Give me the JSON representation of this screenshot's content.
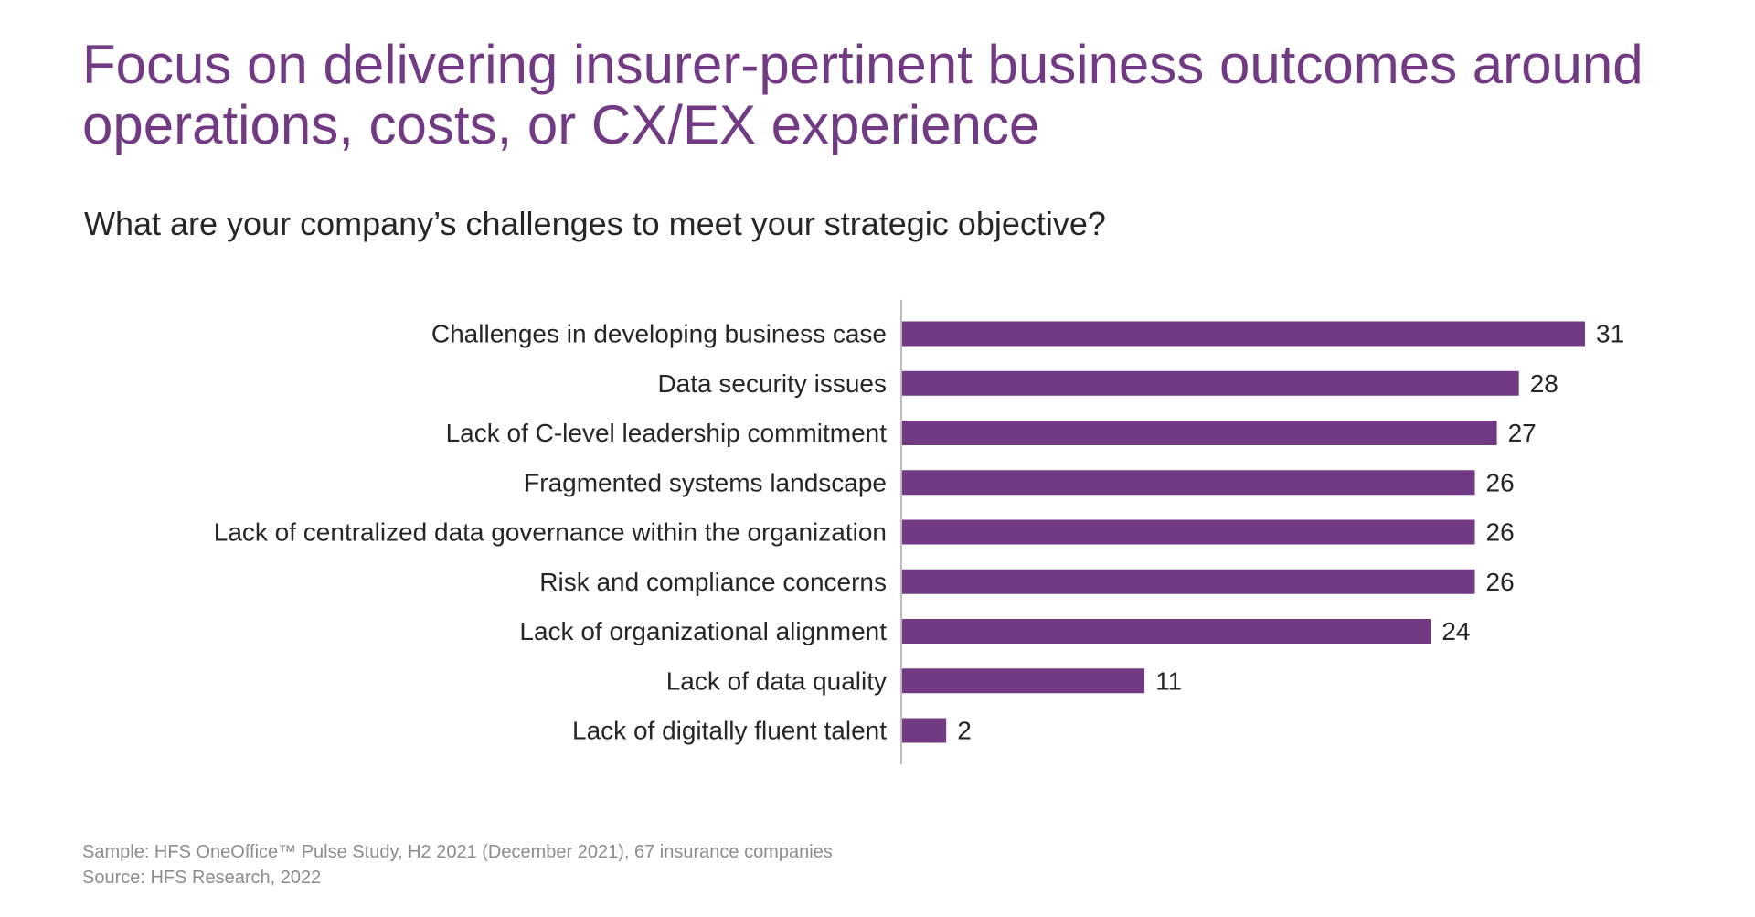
{
  "header": {
    "title": "Focus on delivering insurer-pertinent business outcomes around operations, costs, or CX/EX experience",
    "subtitle": "What are your company’s challenges to meet your strategic objective?"
  },
  "footer": {
    "sample": "Sample: HFS OneOffice™ Pulse Study, H2 2021 (December 2021), 67 insurance companies",
    "source": "Source: HFS Research, 2022"
  },
  "colors": {
    "accent": "#713a83",
    "bar": "#713a83",
    "text": "#262626",
    "footer_text": "#8c8c8c",
    "axis": "#a6a6a6"
  },
  "chart_data": {
    "type": "bar",
    "orientation": "horizontal",
    "title": "What are your company’s challenges to meet your strategic objective?",
    "xlabel": "",
    "ylabel": "",
    "xlim": [
      0,
      31
    ],
    "grid": false,
    "legend": "none",
    "categories": [
      "Challenges in developing business case",
      "Data security issues",
      "Lack of C-level leadership commitment",
      "Fragmented systems landscape",
      "Lack of centralized data governance within the organization",
      "Risk and compliance concerns",
      "Lack of organizational alignment ",
      "Lack of data quality",
      "Lack of digitally fluent talent"
    ],
    "values": [
      31,
      28,
      27,
      26,
      26,
      26,
      24,
      11,
      2
    ]
  }
}
